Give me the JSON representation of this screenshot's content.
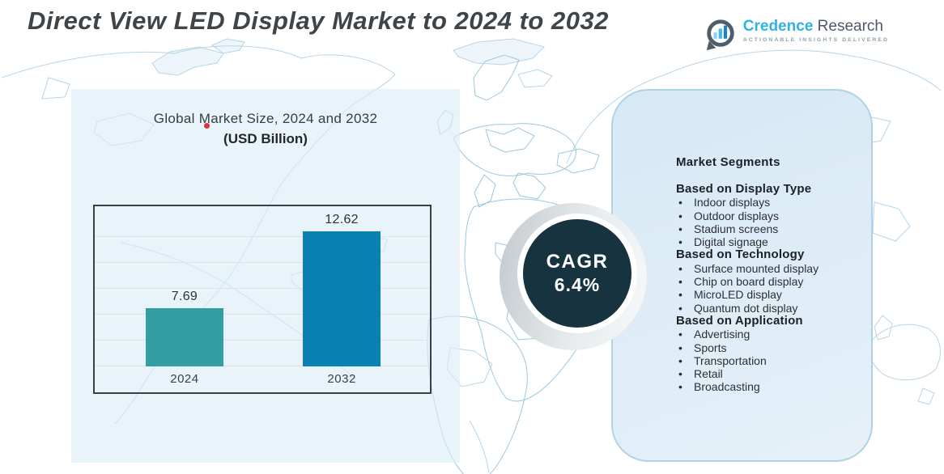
{
  "page_title": "Direct View LED Display Market to 2024 to 2032",
  "logo": {
    "brand_primary": "Credence",
    "brand_secondary": "Research",
    "tagline": "ACTIONABLE INSIGHTS DELIVERED",
    "icon": "bar-chart-speech-bubble-icon"
  },
  "chart_data": {
    "type": "bar",
    "title": "Global Market Size, 2024 and 2032",
    "subtitle": "(USD Billion)",
    "ylabel": "USD Billion",
    "xlabel": "",
    "categories": [
      "2024",
      "2032"
    ],
    "values": [
      7.69,
      12.62
    ],
    "bar_colors": [
      "#339fa3",
      "#0b81b3"
    ],
    "ylim": [
      4,
      14
    ],
    "grid": true,
    "legend": false
  },
  "cagr": {
    "label": "CAGR",
    "value": "6.4%"
  },
  "segments": {
    "heading": "Market Segments",
    "groups": [
      {
        "title": "Based on Display Type",
        "items": [
          "Indoor displays",
          "Outdoor displays",
          "Stadium screens",
          "Digital signage"
        ]
      },
      {
        "title": "Based on Technology",
        "items": [
          "Surface mounted display",
          "Chip on board display",
          "MicroLED display",
          "Quantum dot display"
        ]
      },
      {
        "title": "Based on Application",
        "items": [
          "Advertising",
          "Sports",
          "Transportation",
          "Retail",
          "Broadcasting"
        ]
      }
    ]
  },
  "colors": {
    "accent_teal": "#339fa3",
    "accent_blue": "#0b81b3",
    "cagr_dark": "#17333f",
    "panel_fill": "#d9eaf5",
    "panel_border": "#b0d2e7",
    "map_stroke": "#b7d5e9",
    "brand_blue": "#2fb3e3",
    "title_color": "#3f4449",
    "marker_red": "#e23333"
  }
}
